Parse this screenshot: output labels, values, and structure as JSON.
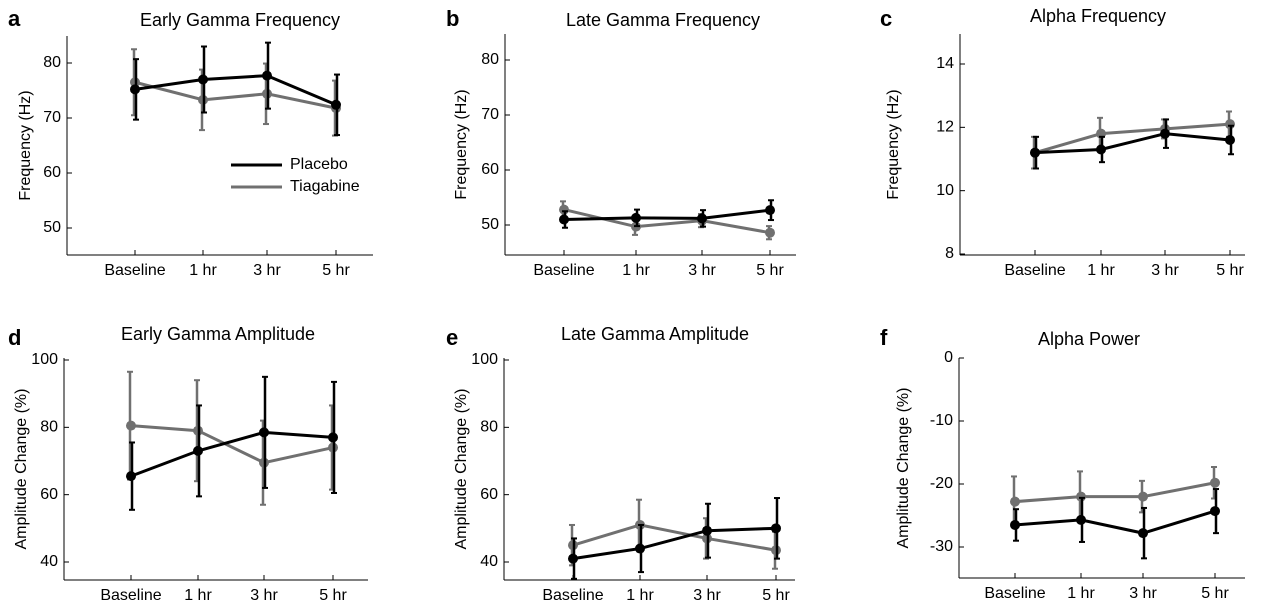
{
  "colors": {
    "placebo": "#000000",
    "tiagabine": "#707070"
  },
  "chart_data": [
    {
      "type": "line",
      "panel_letter": "a",
      "title": "Early Gamma Frequency",
      "xlabel": "",
      "ylabel": "Frequency (Hz)",
      "categories": [
        "Baseline",
        "1 hr",
        "3 hr",
        "5 hr"
      ],
      "ylim": [
        45,
        85
      ],
      "yticks": [
        "80",
        "70",
        "60",
        "50"
      ],
      "ytick_values": [
        80,
        70,
        60,
        50
      ],
      "legend": {
        "position": "center-right",
        "entries": [
          "Placebo",
          "Tiagabine"
        ]
      },
      "series": [
        {
          "name": "Placebo",
          "values": [
            75.2,
            77.0,
            77.7,
            72.4
          ],
          "err": [
            5.5,
            6.0,
            6.0,
            5.5
          ]
        },
        {
          "name": "Tiagabine",
          "values": [
            76.5,
            73.3,
            74.4,
            71.8
          ],
          "err": [
            6.0,
            5.5,
            5.5,
            5.0
          ]
        }
      ]
    },
    {
      "type": "line",
      "panel_letter": "b",
      "title": "Late Gamma Frequency",
      "xlabel": "",
      "ylabel": "Frequency (Hz)",
      "categories": [
        "Baseline",
        "1 hr",
        "3 hr",
        "5 hr"
      ],
      "ylim": [
        45,
        85
      ],
      "yticks": [
        "80",
        "70",
        "60",
        "50"
      ],
      "ytick_values": [
        80,
        70,
        60,
        50
      ],
      "series": [
        {
          "name": "Placebo",
          "values": [
            51.0,
            51.3,
            51.2,
            52.7
          ],
          "err": [
            1.5,
            1.5,
            1.5,
            1.8
          ]
        },
        {
          "name": "Tiagabine",
          "values": [
            52.8,
            49.7,
            50.8,
            48.6
          ],
          "err": [
            1.5,
            1.5,
            1.2,
            1.2
          ]
        }
      ]
    },
    {
      "type": "line",
      "panel_letter": "c",
      "title": "Alpha Frequency",
      "xlabel": "",
      "ylabel": "Frequency (Hz)",
      "categories": [
        "Baseline",
        "1 hr",
        "3 hr",
        "5 hr"
      ],
      "ylim": [
        8,
        15
      ],
      "yticks": [
        "14",
        "12",
        "10",
        "8"
      ],
      "ytick_values": [
        14,
        12,
        10,
        8
      ],
      "series": [
        {
          "name": "Placebo",
          "values": [
            11.2,
            11.3,
            11.8,
            11.6
          ],
          "err": [
            0.5,
            0.4,
            0.45,
            0.45
          ]
        },
        {
          "name": "Tiagabine",
          "values": [
            11.2,
            11.8,
            11.95,
            12.1
          ],
          "err": [
            0.5,
            0.5,
            0.3,
            0.4
          ]
        }
      ]
    },
    {
      "type": "line",
      "panel_letter": "d",
      "title": "Early Gamma Amplitude",
      "xlabel": "",
      "ylabel": "Amplitude Change (%)",
      "categories": [
        "Baseline",
        "1 hr",
        "3 hr",
        "5 hr"
      ],
      "ylim": [
        35,
        100
      ],
      "yticks": [
        "100",
        "80",
        "60",
        "40"
      ],
      "ytick_values": [
        100,
        80,
        60,
        40
      ],
      "series": [
        {
          "name": "Placebo",
          "values": [
            65.5,
            73.0,
            78.5,
            77.0
          ],
          "err": [
            10.0,
            13.5,
            16.5,
            16.5
          ]
        },
        {
          "name": "Tiagabine",
          "values": [
            80.5,
            79.0,
            69.5,
            74.0
          ],
          "err": [
            16.0,
            15.0,
            12.5,
            12.5
          ]
        }
      ]
    },
    {
      "type": "line",
      "panel_letter": "e",
      "title": "Late Gamma Amplitude",
      "xlabel": "",
      "ylabel": "Amplitude Change (%)",
      "categories": [
        "Baseline",
        "1 hr",
        "3 hr",
        "5 hr"
      ],
      "ylim": [
        35,
        100
      ],
      "yticks": [
        "100",
        "80",
        "60",
        "40"
      ],
      "ytick_values": [
        100,
        80,
        60,
        40
      ],
      "series": [
        {
          "name": "Placebo",
          "values": [
            41.0,
            44.0,
            49.3,
            50.0
          ],
          "err": [
            6.0,
            7.0,
            8.0,
            9.0
          ]
        },
        {
          "name": "Tiagabine",
          "values": [
            45.0,
            51.0,
            47.0,
            43.5
          ],
          "err": [
            6.0,
            7.5,
            6.0,
            5.5
          ]
        }
      ]
    },
    {
      "type": "line",
      "panel_letter": "f",
      "title": "Alpha Power",
      "xlabel": "",
      "ylabel": "Amplitude Change (%)",
      "categories": [
        "Baseline",
        "1 hr",
        "3 hr",
        "5 hr"
      ],
      "ylim": [
        -35,
        0
      ],
      "yticks": [
        "0",
        "-10",
        "-20",
        "-30"
      ],
      "ytick_values": [
        0,
        -10,
        -20,
        -30
      ],
      "series": [
        {
          "name": "Placebo",
          "values": [
            -26.5,
            -25.7,
            -27.8,
            -24.3
          ],
          "err": [
            2.5,
            3.5,
            4.0,
            3.5
          ]
        },
        {
          "name": "Tiagabine",
          "values": [
            -22.8,
            -22.0,
            -22.0,
            -19.8
          ],
          "err": [
            4.0,
            4.0,
            2.5,
            2.5
          ]
        }
      ]
    }
  ]
}
